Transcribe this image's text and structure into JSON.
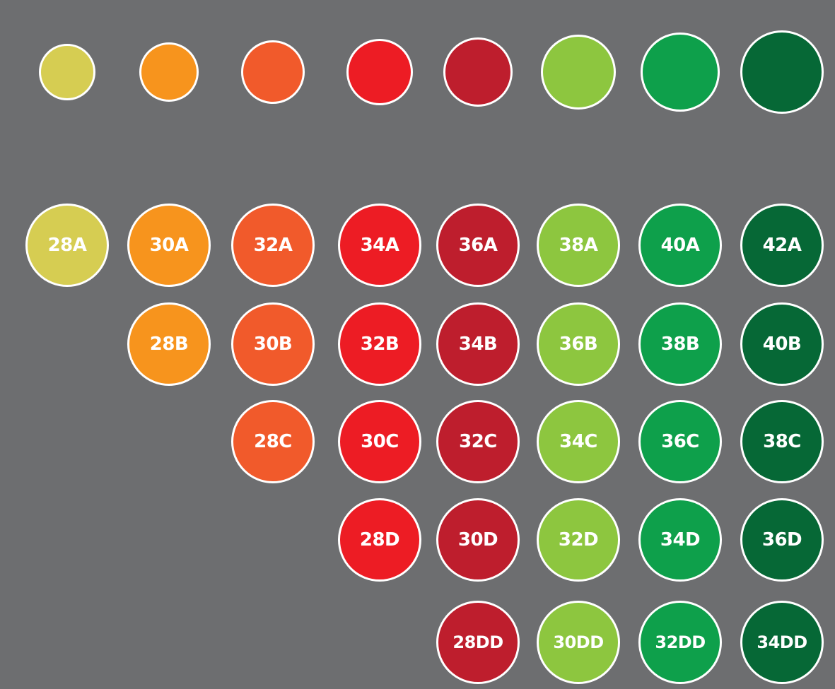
{
  "groups": [
    {
      "color": "#d6cd52",
      "sizes": [
        "28A"
      ]
    },
    {
      "color": "#f7941d",
      "sizes": [
        "30A",
        "28B"
      ]
    },
    {
      "color": "#f15a2b",
      "sizes": [
        "32A",
        "30B",
        "28C"
      ]
    },
    {
      "color": "#ed1c24",
      "sizes": [
        "34A",
        "32B",
        "30C",
        "28D"
      ]
    },
    {
      "color": "#be1e2d",
      "sizes": [
        "36A",
        "34B",
        "32C",
        "30D",
        "28DD"
      ]
    },
    {
      "color": "#8dc63f",
      "sizes": [
        "38A",
        "36B",
        "34C",
        "32D",
        "30DD"
      ]
    },
    {
      "color": "#0ea04b",
      "sizes": [
        "40A",
        "38B",
        "36C",
        "34D",
        "32DD"
      ]
    },
    {
      "color": "#066836",
      "sizes": [
        "42A",
        "40B",
        "38C",
        "36D",
        "34DD"
      ]
    }
  ]
}
